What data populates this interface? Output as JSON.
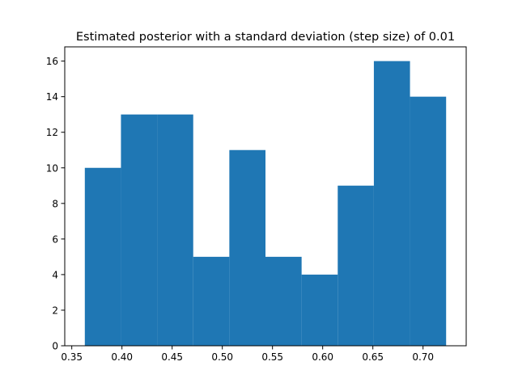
{
  "chart_data": {
    "type": "bar",
    "title": "Estimated posterior with a standard deviation (step size) of 0.01",
    "xlabel": "",
    "ylabel": "",
    "bin_edges": [
      0.363,
      0.399,
      0.435,
      0.471,
      0.507,
      0.543,
      0.579,
      0.615,
      0.651,
      0.687,
      0.723
    ],
    "values": [
      10,
      13,
      13,
      5,
      11,
      5,
      4,
      9,
      16,
      14
    ],
    "xlim": [
      0.343,
      0.743
    ],
    "ylim": [
      0,
      16.8
    ],
    "xticks": [
      0.35,
      0.4,
      0.45,
      0.5,
      0.55,
      0.6,
      0.65,
      0.7
    ],
    "xtick_labels": [
      "0.35",
      "0.40",
      "0.45",
      "0.50",
      "0.55",
      "0.60",
      "0.65",
      "0.70"
    ],
    "yticks": [
      0,
      2,
      4,
      6,
      8,
      10,
      12,
      14,
      16
    ],
    "ytick_labels": [
      "0",
      "2",
      "4",
      "6",
      "8",
      "10",
      "12",
      "14",
      "16"
    ],
    "grid": false,
    "bar_color": "#1f77b4"
  }
}
